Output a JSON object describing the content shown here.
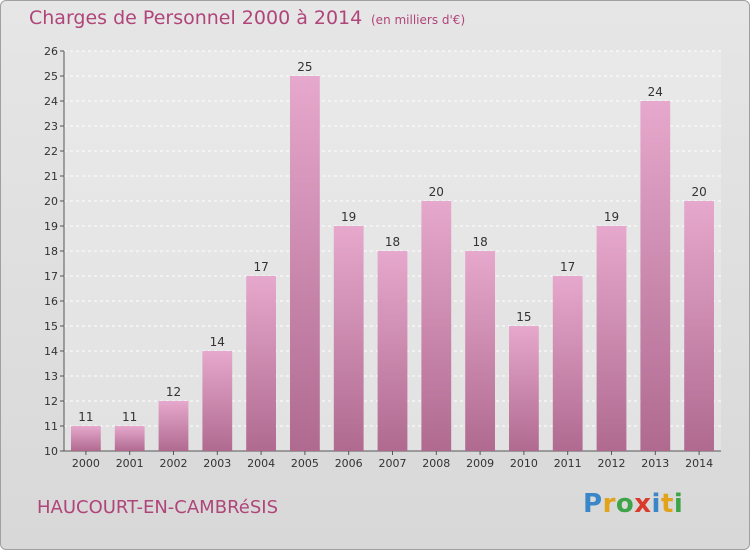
{
  "header": {
    "title": "Charges de Personnel 2000 à 2014",
    "subtitle": "(en milliers d'€)"
  },
  "footer": {
    "town": "HAUCOURT-EN-CAMBRéSIS",
    "logo_letters": [
      "P",
      "r",
      "o",
      "x",
      "i",
      "t",
      "i"
    ],
    "logo_colors": [
      "#3a86c8",
      "#e2a21a",
      "#3fa447",
      "#d93a2b",
      "#3a86c8",
      "#e2a21a",
      "#3fa447"
    ]
  },
  "chart_data": {
    "type": "bar",
    "categories": [
      "2000",
      "2001",
      "2002",
      "2003",
      "2004",
      "2005",
      "2006",
      "2007",
      "2008",
      "2009",
      "2010",
      "2011",
      "2012",
      "2013",
      "2014"
    ],
    "values": [
      11,
      11,
      12,
      14,
      17,
      25,
      19,
      18,
      20,
      18,
      15,
      17,
      19,
      24,
      20
    ],
    "value_labels": [
      "11",
      "11",
      "12",
      "14",
      "17",
      "25",
      "19",
      "18",
      "20",
      "18",
      "15",
      "17",
      "19",
      "24",
      "20"
    ],
    "title": "Charges de Personnel 2000 à 2014",
    "xlabel": "",
    "ylabel": "",
    "ylim": [
      10,
      26
    ],
    "yticks": [
      10,
      11,
      12,
      13,
      14,
      15,
      16,
      17,
      18,
      19,
      20,
      21,
      22,
      23,
      24,
      25,
      26
    ],
    "grid": true,
    "bar_color_top": "#e6a8cc",
    "bar_color_bottom": "#b06a90"
  }
}
